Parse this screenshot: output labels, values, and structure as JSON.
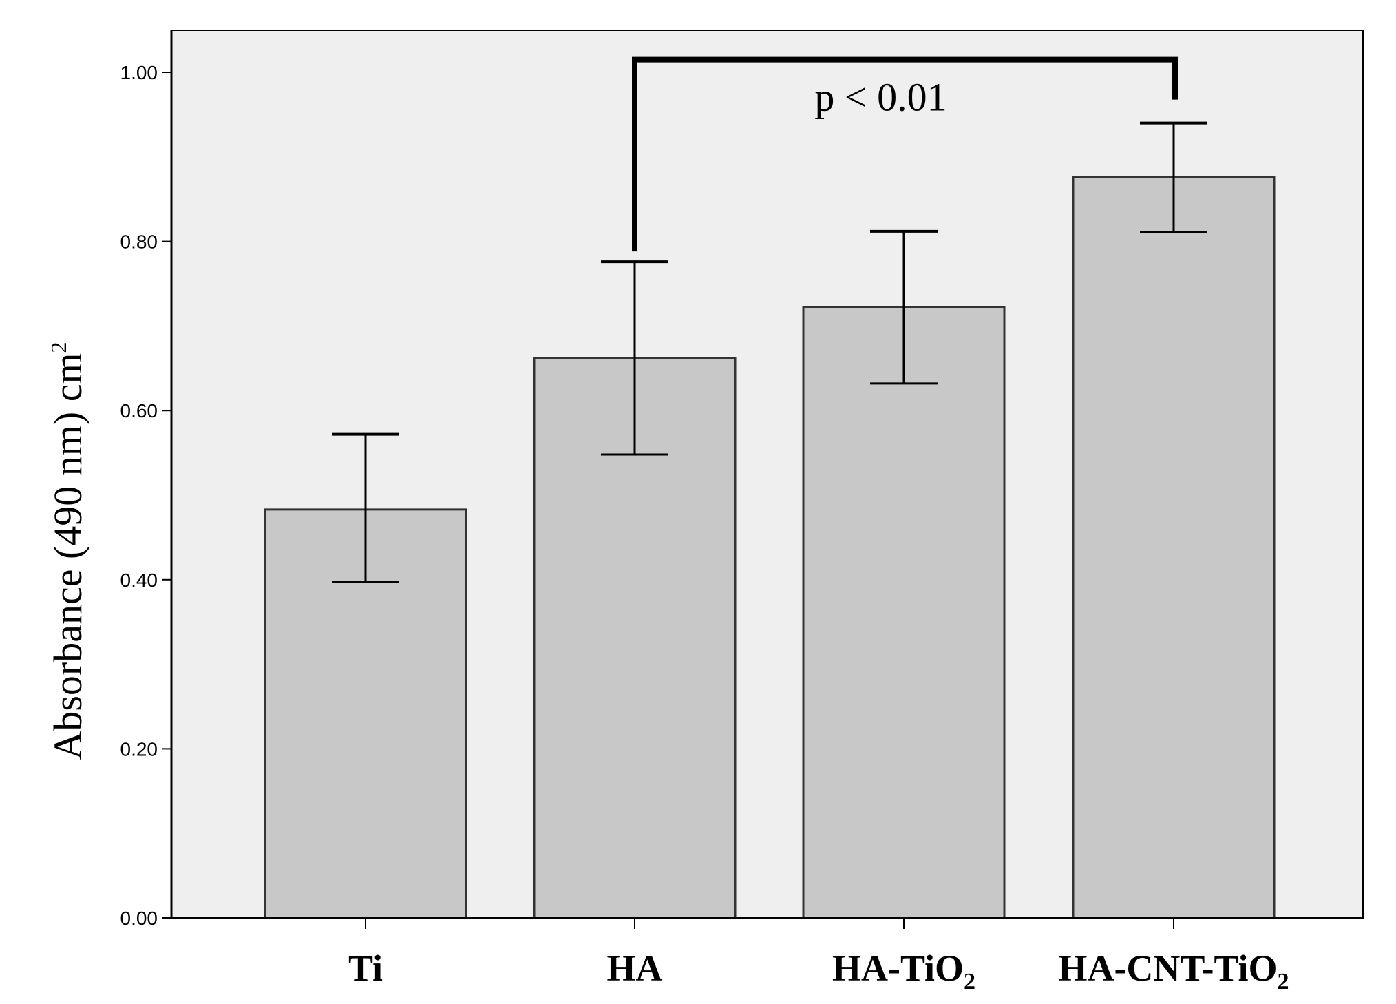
{
  "chart_data": {
    "type": "bar",
    "categories": [
      {
        "base": "Ti",
        "sub": ""
      },
      {
        "base": "HA",
        "sub": ""
      },
      {
        "base": "HA-TiO",
        "sub": "2"
      },
      {
        "base": "HA-CNT-TiO",
        "sub": "2"
      }
    ],
    "values": [
      0.483,
      0.662,
      0.722,
      0.876
    ],
    "error_low": [
      0.397,
      0.548,
      0.632,
      0.811
    ],
    "error_high": [
      0.572,
      0.776,
      0.812,
      0.94
    ],
    "ylabel": {
      "text": "Absorbance (490 nm) cm",
      "sup": "2"
    },
    "xlabel": "",
    "title": "",
    "ylim": [
      0,
      1.05
    ],
    "yticks": [
      "0.00",
      "0.20",
      "0.40",
      "0.60",
      "0.80",
      "1.00"
    ],
    "ytick_values": [
      0,
      0.2,
      0.4,
      0.6,
      0.8,
      1.0
    ],
    "grid": false,
    "legend": "none",
    "annotation": {
      "text": "p < 0.01",
      "between": [
        "HA",
        "HA-CNT-TiO2"
      ],
      "bracket_level": 1.015
    },
    "colors": {
      "plot_background": "#efefef",
      "bar_fill": "#c8c8c8",
      "bar_stroke": "#333333",
      "axis": "#000000"
    }
  }
}
